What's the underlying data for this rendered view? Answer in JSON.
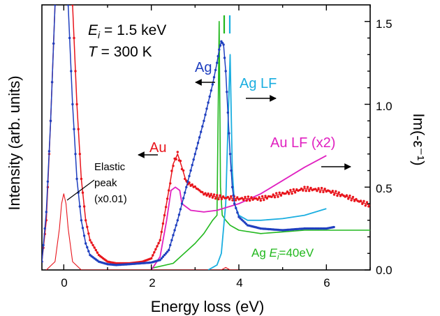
{
  "chart_data": {
    "type": "line",
    "title": "",
    "xlabel": "Energy loss (eV)",
    "ylabel_left": "Intensity (arb. units)",
    "ylabel_right": "Im(-ε⁻¹)",
    "xlim": [
      -0.5,
      7
    ],
    "ylim_right": [
      0,
      1.6
    ],
    "x_ticks": [
      "0",
      "2",
      "4",
      "6"
    ],
    "right_ticks": [
      "0.0",
      "0.5",
      "1.0",
      "1.5"
    ],
    "annotations": {
      "energy": "E",
      "energy_sub": "i",
      "energy_value": " = 1.5 keV",
      "temp": "T",
      "temp_value": " = 300 K",
      "ag": "Ag",
      "ag_lf": "Ag LF",
      "au": "Au",
      "au_lf": "Au LF (x2)",
      "elastic_1": "Elastic",
      "elastic_2": "peak",
      "elastic_3": "(x0.01)",
      "ag40_prefix": "Ag ",
      "ag40_e": "E",
      "ag40_sub": "i",
      "ag40_value": "=40eV"
    },
    "colors": {
      "ag": "#1f3fbf",
      "ag_lf": "#1aaee0",
      "au": "#e8141b",
      "au_lf": "#e020c0",
      "ag40": "#22b81e",
      "elastic": "#e8141b"
    },
    "series": [
      {
        "name": "Ag",
        "axis": "left",
        "x": [
          -0.5,
          -0.4,
          -0.3,
          -0.2,
          -0.1,
          0,
          0.1,
          0.2,
          0.3,
          0.4,
          0.5,
          0.6,
          0.8,
          1.0,
          1.2,
          1.5,
          2.0,
          2.2,
          2.4,
          2.6,
          2.8,
          3.0,
          3.2,
          3.4,
          3.5,
          3.55,
          3.6,
          3.65,
          3.7,
          3.75,
          3.8,
          3.85,
          3.9,
          4.0,
          4.2,
          4.5,
          5.0,
          5.5,
          6.0,
          6.2
        ],
        "y": [
          0.05,
          0.35,
          0.9,
          1.6,
          1.75,
          1.75,
          1.6,
          1.0,
          0.55,
          0.3,
          0.16,
          0.09,
          0.05,
          0.035,
          0.03,
          0.035,
          0.045,
          0.06,
          0.12,
          0.3,
          0.5,
          0.7,
          0.9,
          1.12,
          1.25,
          1.33,
          1.38,
          1.36,
          1.2,
          0.95,
          0.7,
          0.5,
          0.4,
          0.32,
          0.27,
          0.25,
          0.24,
          0.25,
          0.25,
          0.26
        ]
      },
      {
        "name": "Au",
        "axis": "left",
        "x": [
          -0.5,
          -0.4,
          -0.3,
          -0.2,
          -0.1,
          0,
          0.1,
          0.2,
          0.3,
          0.4,
          0.5,
          0.6,
          0.8,
          1.0,
          1.2,
          1.5,
          1.8,
          2.0,
          2.2,
          2.4,
          2.5,
          2.6,
          2.7,
          2.8,
          3.0,
          3.2,
          3.5,
          4.0,
          4.5,
          5.0,
          5.5,
          6.0,
          6.5,
          7.0
        ],
        "y": [
          0.05,
          0.3,
          0.9,
          1.6,
          1.75,
          1.75,
          1.75,
          1.6,
          1.0,
          0.55,
          0.3,
          0.18,
          0.09,
          0.05,
          0.04,
          0.04,
          0.05,
          0.07,
          0.18,
          0.48,
          0.64,
          0.7,
          0.62,
          0.53,
          0.5,
          0.46,
          0.44,
          0.43,
          0.43,
          0.46,
          0.49,
          0.48,
          0.44,
          0.39
        ]
      },
      {
        "name": "Ag LF",
        "axis": "right",
        "x": [
          3.3,
          3.5,
          3.6,
          3.7,
          3.75,
          3.8,
          3.85,
          3.9,
          4.0,
          4.2,
          4.5,
          5.0,
          5.5,
          6.0
        ],
        "y": [
          0.0,
          0.03,
          0.1,
          0.4,
          0.85,
          1.3,
          0.6,
          0.4,
          0.33,
          0.3,
          0.3,
          0.31,
          0.33,
          0.37
        ]
      },
      {
        "name": "Au LF (x2)",
        "axis": "right",
        "x": [
          2.0,
          2.2,
          2.35,
          2.45,
          2.55,
          2.65,
          2.7,
          2.9,
          3.2,
          3.5,
          4.0,
          4.5,
          5.0,
          5.5,
          6.0
        ],
        "y": [
          0.0,
          0.08,
          0.3,
          0.48,
          0.5,
          0.48,
          0.4,
          0.36,
          0.35,
          0.36,
          0.4,
          0.46,
          0.54,
          0.62,
          0.69
        ]
      },
      {
        "name": "Ag Ei=40eV",
        "axis": "right",
        "x": [
          2.0,
          2.5,
          3.0,
          3.2,
          3.4,
          3.5,
          3.55,
          3.58,
          3.62,
          3.7,
          3.8,
          4.0,
          4.5,
          5.0,
          5.5,
          6.0,
          6.5,
          7.0
        ],
        "y": [
          0.01,
          0.04,
          0.16,
          0.22,
          0.3,
          0.33,
          1.5,
          0.5,
          0.33,
          0.3,
          0.27,
          0.24,
          0.22,
          0.23,
          0.24,
          0.24,
          0.24,
          0.24
        ]
      },
      {
        "name": "Elastic peak (x0.01)",
        "axis": "left",
        "x": [
          -0.4,
          -0.2,
          -0.1,
          -0.05,
          0,
          0.05,
          0.1,
          0.2,
          0.4,
          1.0,
          2.0,
          3.0,
          3.6,
          3.7,
          3.8,
          4.0
        ],
        "y": [
          0.0,
          0.05,
          0.25,
          0.4,
          0.46,
          0.4,
          0.25,
          0.05,
          0.0,
          0.0,
          0.0,
          0.0,
          0.0,
          0.015,
          0.0,
          0.0
        ]
      }
    ]
  }
}
